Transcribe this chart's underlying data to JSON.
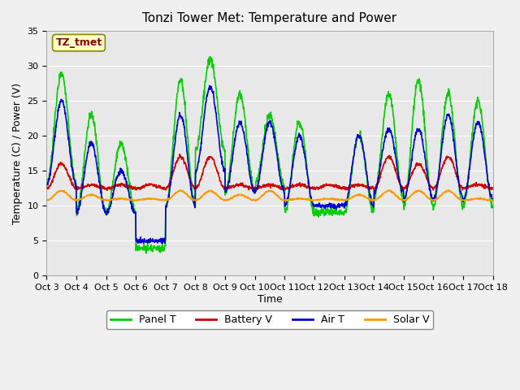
{
  "title": "Tonzi Tower Met: Temperature and Power",
  "xlabel": "Time",
  "ylabel": "Temperature (C) / Power (V)",
  "ylim": [
    0,
    35
  ],
  "yticks": [
    0,
    5,
    10,
    15,
    20,
    25,
    30,
    35
  ],
  "xlim": [
    0,
    15
  ],
  "xtick_labels": [
    "Oct 3",
    "Oct 4",
    "Oct 5",
    "Oct 6",
    "Oct 7",
    "Oct 8",
    "Oct 9",
    "Oct 10",
    "Oct 11",
    "Oct 12",
    "Oct 13",
    "Oct 14",
    "Oct 15",
    "Oct 16",
    "Oct 17",
    "Oct 18"
  ],
  "colors": {
    "panel_t": "#00CC00",
    "battery_v": "#CC0000",
    "air_t": "#0000CC",
    "solar_v": "#FF9900"
  },
  "legend_label": "TZ_tmet",
  "fig_facecolor": "#F0F0F0",
  "ax_facecolor": "#E8E8E8",
  "legend_entries": [
    "Panel T",
    "Battery V",
    "Air T",
    "Solar V"
  ],
  "n_days": 15,
  "daily_peaks_panel": [
    29,
    23,
    19,
    4,
    28,
    31,
    26,
    23,
    22,
    9,
    20,
    26,
    28,
    26,
    25
  ],
  "daily_peaks_air": [
    25,
    19,
    15,
    5,
    23,
    27,
    22,
    22,
    20,
    10,
    20,
    21,
    21,
    23,
    22
  ],
  "daily_min_panel": [
    13,
    9,
    9,
    4,
    10,
    18,
    12,
    13,
    9,
    9,
    9,
    11,
    10,
    10,
    10
  ],
  "daily_min_air": [
    13,
    9,
    9,
    5,
    10,
    15,
    12,
    12,
    10,
    10,
    10,
    12,
    11,
    11,
    11
  ],
  "daily_batt_peak": [
    16,
    13,
    13,
    13,
    17,
    17,
    13,
    13,
    13,
    13,
    13,
    17,
    16,
    17,
    13
  ],
  "daily_solar_peak": [
    12,
    11.5,
    11,
    11,
    12,
    12,
    11.5,
    12,
    11,
    11,
    11.5,
    12,
    12,
    12,
    11
  ],
  "batt_base": 12.5,
  "solar_base": 10.8,
  "n_points": 1500
}
